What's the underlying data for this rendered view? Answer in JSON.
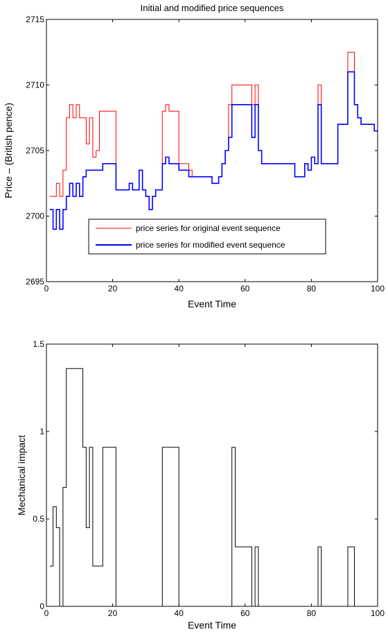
{
  "chart_data": [
    {
      "type": "line",
      "title": "Initial and modified price sequences",
      "xlabel": "Event Time",
      "ylabel": "Price – (British pence)",
      "xlim": [
        0,
        100
      ],
      "ylim": [
        2695,
        2715
      ],
      "xticks": [
        "0",
        "20",
        "40",
        "60",
        "80",
        "100"
      ],
      "yticks": [
        "2695",
        "2700",
        "2705",
        "2710",
        "2715"
      ],
      "legend_position": "lower-center",
      "grid": false,
      "step": true,
      "series": [
        {
          "name": "price series for original  event sequence",
          "color": "#ff0000",
          "x": [
            1,
            3,
            4,
            5,
            6,
            7,
            8,
            9,
            10,
            11,
            12,
            13,
            14,
            15,
            16,
            17,
            21,
            25,
            26,
            27,
            28,
            29,
            30,
            31,
            32,
            33,
            34,
            35,
            36,
            37,
            38,
            40,
            43,
            44,
            49,
            50,
            52,
            53,
            54,
            55,
            56,
            57,
            58,
            62,
            63,
            64,
            65,
            66,
            75,
            76,
            78,
            79,
            80,
            81,
            82,
            83,
            88,
            91,
            92,
            93,
            94,
            95,
            96,
            99,
            100
          ],
          "values": [
            2701.5,
            2702.5,
            2701.5,
            2703.5,
            2707.5,
            2708.5,
            2707.5,
            2708.5,
            2707.5,
            2707.5,
            2705.5,
            2707.5,
            2704.5,
            2705,
            2708,
            2708,
            2702,
            2702.5,
            2702,
            2702,
            2703.5,
            2702,
            2701.5,
            2700.5,
            2701.5,
            2702,
            2702,
            2708,
            2708.5,
            2708,
            2708,
            2704,
            2703.5,
            2703,
            2703,
            2702.5,
            2703,
            2704,
            2705,
            2708.5,
            2710,
            2710,
            2710,
            2708.5,
            2710,
            2705,
            2704,
            2704,
            2703,
            2703,
            2704,
            2703.5,
            2704.5,
            2704,
            2710,
            2704,
            2707,
            2712.5,
            2712.5,
            2708.5,
            2707.5,
            2707,
            2707,
            2706.5,
            2706.5
          ]
        },
        {
          "name": "price series for modified event sequence",
          "color": "#0000ff",
          "x": [
            1,
            2,
            3,
            4,
            5,
            6,
            7,
            8,
            9,
            10,
            11,
            12,
            17,
            21,
            25,
            26,
            27,
            28,
            29,
            30,
            31,
            32,
            33,
            34,
            35,
            36,
            37,
            38,
            40,
            43,
            44,
            49,
            50,
            52,
            53,
            54,
            55,
            56,
            57,
            58,
            62,
            63,
            64,
            65,
            66,
            75,
            76,
            78,
            79,
            80,
            81,
            82,
            83,
            88,
            91,
            92,
            93,
            94,
            95,
            96,
            99,
            100
          ],
          "values": [
            2700.5,
            2699,
            2700.5,
            2699,
            2700.5,
            2701.5,
            2702.5,
            2701.5,
            2702.5,
            2701.5,
            2703,
            2703.5,
            2704,
            2702,
            2702.5,
            2702,
            2702,
            2703.5,
            2702,
            2701.5,
            2700.5,
            2701.5,
            2702,
            2702,
            2704,
            2704.5,
            2704,
            2704,
            2703.5,
            2703,
            2703,
            2703,
            2702.5,
            2703,
            2704,
            2705,
            2706,
            2708.5,
            2708.5,
            2708.5,
            2706,
            2708.5,
            2705,
            2704,
            2704,
            2703,
            2703,
            2704,
            2703.5,
            2704.5,
            2704,
            2708.5,
            2704,
            2707,
            2711,
            2711,
            2708.5,
            2707.5,
            2707,
            2707,
            2706.5,
            2706.5
          ]
        }
      ]
    },
    {
      "type": "line",
      "title": "",
      "xlabel": "Event Time",
      "ylabel": "Mechanical impact",
      "xlim": [
        0,
        100
      ],
      "ylim": [
        0,
        1.5
      ],
      "xticks": [
        "0",
        "20",
        "40",
        "60",
        "80",
        "100"
      ],
      "yticks": [
        "0",
        "0.5",
        "1",
        "1.5"
      ],
      "grid": false,
      "step": true,
      "series": [
        {
          "color": "#000000",
          "x": [
            1,
            2,
            3,
            4,
            5,
            6,
            11,
            12,
            13,
            14,
            17,
            21,
            35,
            40,
            56,
            57,
            62,
            63,
            64,
            82,
            83,
            91,
            93
          ],
          "values": [
            0.23,
            0.57,
            0.45,
            0,
            0.68,
            1.36,
            0.91,
            0.45,
            0.91,
            0.23,
            0.91,
            0,
            0.91,
            0,
            0.91,
            0.34,
            0,
            0.34,
            0,
            0.34,
            0,
            0.34,
            0
          ]
        }
      ]
    }
  ]
}
